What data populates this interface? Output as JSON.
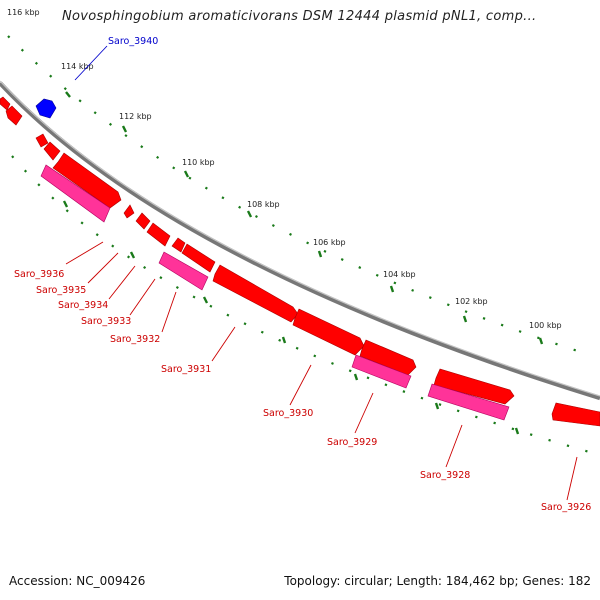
{
  "map": {
    "title": "Novosphingobium aromaticivorans DSM 12444 plasmid pNL1, comp...",
    "accession_text": "Accession: NC_009426",
    "summary_text": "Topology: circular; Length: 184,462 bp; Genes: 182"
  },
  "colors": {
    "gene_forward": "#ff0000",
    "gene_reverse_cds": "#ff3399",
    "gene_highlight": "#0000ff",
    "label_highlight": "#0000cc",
    "label_default": "#cc0000",
    "scale_ticks": "#1a7a1a",
    "backbone": "#888888"
  },
  "ticks": [
    {
      "label": "116 kbp"
    },
    {
      "label": "114 kbp"
    },
    {
      "label": "112 kbp"
    },
    {
      "label": "110 kbp"
    },
    {
      "label": "108 kbp"
    },
    {
      "label": "106 kbp"
    },
    {
      "label": "104 kbp"
    },
    {
      "label": "102 kbp"
    },
    {
      "label": "100 kbp"
    }
  ],
  "genes": [
    {
      "name": "Saro_3940",
      "highlight": true
    },
    {
      "name": "Saro_3936"
    },
    {
      "name": "Saro_3935"
    },
    {
      "name": "Saro_3934"
    },
    {
      "name": "Saro_3933"
    },
    {
      "name": "Saro_3932"
    },
    {
      "name": "Saro_3931"
    },
    {
      "name": "Saro_3930"
    },
    {
      "name": "Saro_3929"
    },
    {
      "name": "Saro_3928"
    },
    {
      "name": "Saro_3926"
    }
  ]
}
